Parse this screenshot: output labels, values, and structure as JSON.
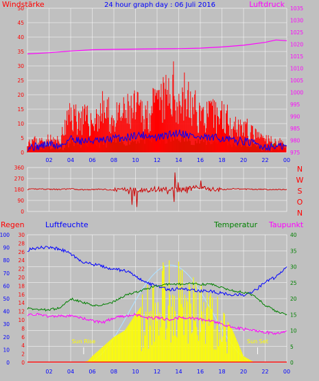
{
  "title": "24 hour graph day : 06 Juli 2016",
  "colors": {
    "background": "#c0c0c0",
    "plot_bg": "#c0c0c0",
    "grid": "#ffffff",
    "wind": "#ff0000",
    "gust": "#ff0000",
    "wind_avg": "#0000ff",
    "wind_low": "#008000",
    "pressure": "#ff00ff",
    "direction": "#cc0000",
    "rain": "#ff0000",
    "humidity": "#0000ff",
    "temperature": "#008000",
    "dewpoint": "#ff00ff",
    "solar": "#ffff00",
    "solar_max": "#b0e0ff",
    "sun_label": "#ffff00",
    "axis_red": "#ff0000",
    "axis_blue": "#0000ff",
    "axis_green": "#008000",
    "axis_magenta": "#ff00ff"
  },
  "chart_data": [
    {
      "id": "wind-pressure",
      "type": "line",
      "left_label": "Windstärke",
      "right_label": "Luftdruck",
      "x_ticks": [
        "02",
        "04",
        "06",
        "08",
        "10",
        "12",
        "14",
        "16",
        "18",
        "20",
        "22",
        "00"
      ],
      "y_left": {
        "min": 0,
        "max": 50,
        "ticks": [
          "0",
          "5",
          "10",
          "15",
          "20",
          "25",
          "30",
          "35",
          "40",
          "45",
          "50"
        ]
      },
      "y_right": {
        "min": 975,
        "max": 1035,
        "ticks": [
          "975",
          "980",
          "985",
          "990",
          "995",
          "1000",
          "1005",
          "1010",
          "1015",
          "1020",
          "1025",
          "1030",
          "1035"
        ]
      },
      "series": [
        {
          "key": "gust",
          "hours": [
            0,
            1,
            2,
            3,
            3.5,
            4,
            5,
            6,
            7,
            8,
            9,
            10,
            11,
            12,
            13,
            13.5,
            14,
            14.5,
            15,
            16,
            17,
            18,
            19,
            20,
            21,
            22,
            23,
            24
          ],
          "values": [
            6,
            5,
            6,
            5,
            12,
            18,
            16,
            14,
            20,
            15,
            18,
            20,
            18,
            22,
            26,
            29,
            24,
            27,
            22,
            18,
            17,
            18,
            14,
            12,
            8,
            6,
            5,
            4
          ]
        },
        {
          "key": "wind_avg",
          "hours": [
            0,
            1,
            2,
            3,
            4,
            5,
            6,
            7,
            8,
            9,
            10,
            11,
            12,
            13,
            14,
            15,
            16,
            17,
            18,
            19,
            20,
            21,
            22,
            23,
            24
          ],
          "values": [
            2,
            2,
            3,
            2,
            5,
            4,
            4,
            4,
            5,
            5,
            6,
            6,
            5,
            6,
            7,
            6,
            5,
            5,
            5,
            4,
            4,
            3,
            2,
            2,
            2
          ]
        },
        {
          "key": "pressure",
          "hours": [
            0,
            2,
            4,
            6,
            8,
            10,
            12,
            14,
            16,
            18,
            20,
            22,
            23,
            24
          ],
          "values": [
            1016,
            1016.5,
            1017.2,
            1017.7,
            1017.9,
            1018,
            1018.1,
            1018.2,
            1018.4,
            1018.9,
            1019.6,
            1020.8,
            1021.8,
            1021.5
          ]
        }
      ]
    },
    {
      "id": "wind-direction",
      "type": "line",
      "y_left": {
        "min": 0,
        "max": 360,
        "ticks": [
          "0",
          "90",
          "180",
          "270",
          "360"
        ]
      },
      "y_right_labels": [
        "N",
        "W",
        "S",
        "O",
        "N"
      ],
      "series": [
        {
          "key": "direction",
          "hours": [
            0,
            1,
            2,
            3,
            4,
            5,
            6,
            7,
            8,
            9,
            10,
            11,
            12,
            13,
            14,
            15,
            16,
            17,
            18,
            19,
            20,
            21,
            22,
            23,
            24
          ],
          "values": [
            180,
            185,
            182,
            180,
            185,
            178,
            180,
            182,
            175,
            185,
            180,
            170,
            185,
            180,
            176,
            188,
            195,
            182,
            178,
            186,
            182,
            182,
            180,
            180,
            180
          ]
        }
      ]
    },
    {
      "id": "temp-humidity",
      "type": "line",
      "labels": {
        "rain": "Regen",
        "humidity": "Luftfeuchte",
        "temperature": "Temperatur",
        "dewpoint": "Taupunkt"
      },
      "sunrise_label": "Sun Rise",
      "sunset_label": "Sun Set",
      "sunrise_hour": 5.2,
      "sunset_hour": 21.3,
      "y_rain_ticks": [
        "0",
        "10",
        "20",
        "30",
        "40",
        "50",
        "60",
        "70",
        "80",
        "90",
        "100"
      ],
      "y_humidity_ticks": [
        "0",
        "2",
        "4",
        "6",
        "8",
        "10",
        "12",
        "14",
        "16",
        "18",
        "20",
        "22",
        "24",
        "26",
        "28",
        "30"
      ],
      "y_temp_ticks": [
        "0",
        "5",
        "10",
        "15",
        "20",
        "25",
        "30",
        "35",
        "40"
      ],
      "series": [
        {
          "key": "humidity",
          "unit_max": 100,
          "hours": [
            0,
            1,
            2,
            3,
            4,
            5,
            6,
            7,
            8,
            9,
            10,
            11,
            12,
            13,
            14,
            15,
            16,
            17,
            18,
            19,
            20,
            21,
            22,
            23,
            24
          ],
          "values": [
            88,
            90,
            90,
            89,
            85,
            79,
            77,
            75,
            73,
            72,
            68,
            62,
            60,
            57,
            58,
            57,
            56,
            56,
            54,
            53,
            53,
            56,
            63,
            67,
            75
          ]
        },
        {
          "key": "temperature",
          "unit_max": 40,
          "hours": [
            0,
            1,
            2,
            3,
            4,
            5,
            6,
            7,
            8,
            9,
            10,
            11,
            12,
            13,
            14,
            15,
            16,
            17,
            18,
            19,
            20,
            21,
            22,
            23,
            24
          ],
          "values": [
            17,
            16.5,
            16.5,
            17,
            20,
            19,
            18,
            18,
            19,
            21,
            22,
            23,
            24,
            24.5,
            24.5,
            24.7,
            24.5,
            24.5,
            23.5,
            22.5,
            22,
            21,
            18,
            16,
            15
          ]
        },
        {
          "key": "dewpoint",
          "unit_max": 40,
          "hours": [
            0,
            1,
            2,
            3,
            4,
            5,
            6,
            7,
            8,
            9,
            10,
            11,
            12,
            13,
            14,
            15,
            16,
            17,
            18,
            19,
            20,
            21,
            22,
            23,
            24
          ],
          "values": [
            15,
            15,
            14.5,
            14.5,
            14.5,
            14,
            13,
            12.5,
            14,
            14.5,
            15,
            14,
            14,
            13.5,
            14,
            14,
            13.5,
            13,
            12,
            11,
            10.5,
            10,
            9.5,
            9,
            10
          ]
        },
        {
          "key": "solar",
          "unit_max": 40,
          "hours": [
            0,
            5,
            5.6,
            6,
            7,
            8,
            9,
            10,
            11,
            12,
            13,
            14,
            15,
            16,
            17,
            18,
            19,
            20,
            21,
            24
          ],
          "values": [
            0,
            0,
            0.5,
            2,
            5,
            8,
            10,
            15,
            20,
            25,
            30,
            28,
            24,
            22,
            20,
            16,
            10,
            2,
            0,
            0
          ]
        }
      ]
    }
  ]
}
